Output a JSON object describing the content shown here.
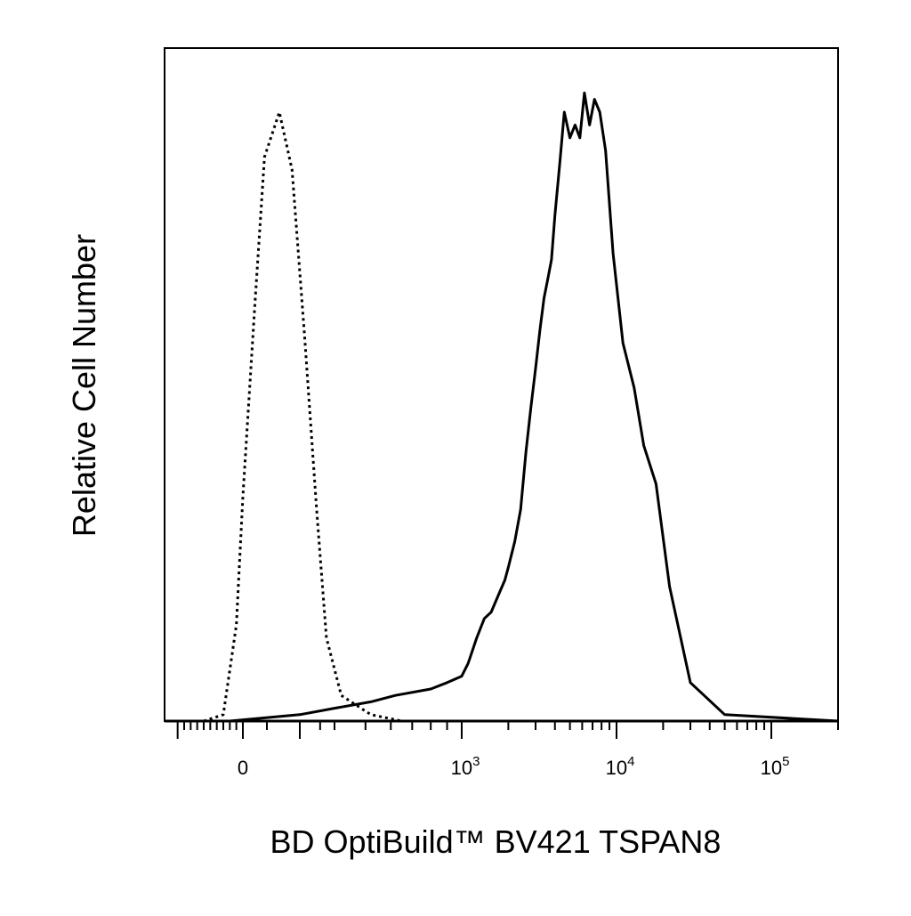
{
  "chart_data": {
    "type": "line",
    "title": "",
    "xlabel": "BD OptiBuild™ BV421 TSPAN8",
    "ylabel": "Relative Cell Number",
    "x_scale": "biexponential",
    "xlim": [
      -600,
      200000
    ],
    "ylim": [
      0,
      1.05
    ],
    "grid": false,
    "legend": "none",
    "x_tick_labels": [
      {
        "value": 0,
        "base": "0",
        "exp": ""
      },
      {
        "value": 1000,
        "base": "10",
        "exp": "3"
      },
      {
        "value": 10000,
        "base": "10",
        "exp": "4"
      },
      {
        "value": 100000,
        "base": "10",
        "exp": "5"
      }
    ],
    "series": [
      {
        "style": "dotted",
        "color": "#000000",
        "x": [
          -300,
          -150,
          -50,
          0,
          50,
          90,
          130,
          170,
          220,
          280,
          340,
          420,
          520,
          650
        ],
        "y": [
          0,
          0.01,
          0.15,
          0.35,
          0.65,
          0.88,
          0.95,
          0.86,
          0.6,
          0.33,
          0.13,
          0.04,
          0.01,
          0
        ]
      },
      {
        "style": "solid",
        "color": "#000000",
        "x": [
          -600,
          -100,
          200,
          400,
          520,
          620,
          800,
          900,
          1000,
          1100,
          1250,
          1400,
          1550,
          1750,
          1900,
          2000,
          2200,
          2400,
          2600,
          2800,
          3000,
          3200,
          3400,
          3600,
          3800,
          4000,
          4300,
          4600,
          5000,
          5400,
          5800,
          6200,
          6700,
          7200,
          7800,
          8500,
          9500,
          11000,
          13000,
          15000,
          18000,
          22000,
          30000,
          50000,
          200000
        ],
        "y": [
          0,
          0,
          0.01,
          0.02,
          0.03,
          0.04,
          0.05,
          0.06,
          0.07,
          0.09,
          0.13,
          0.16,
          0.17,
          0.2,
          0.22,
          0.24,
          0.28,
          0.33,
          0.42,
          0.49,
          0.55,
          0.61,
          0.66,
          0.69,
          0.72,
          0.79,
          0.87,
          0.95,
          0.91,
          0.93,
          0.91,
          0.98,
          0.93,
          0.97,
          0.95,
          0.89,
          0.73,
          0.59,
          0.52,
          0.43,
          0.37,
          0.21,
          0.06,
          0.01,
          0
        ]
      }
    ]
  }
}
